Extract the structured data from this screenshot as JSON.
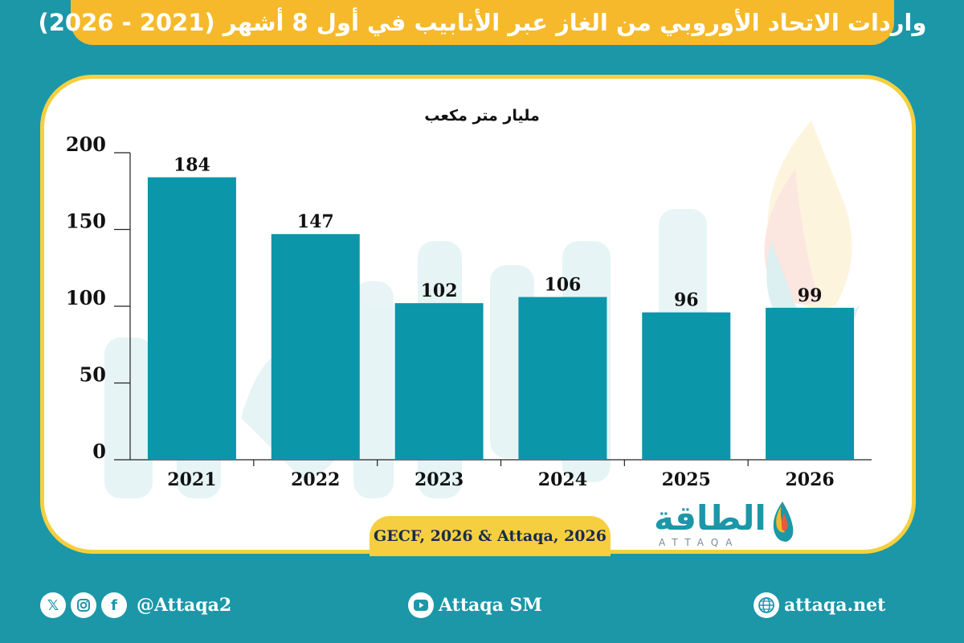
{
  "header": {
    "title": "واردات الاتحاد الأوروبي من الغاز عبر الأنابيب في أول 8 أشهر (2021 - 2026)"
  },
  "chart_data": {
    "type": "bar",
    "ylabel": "مليار متر مكعب",
    "categories": [
      "2021",
      "2022",
      "2023",
      "2024",
      "2025",
      "2026"
    ],
    "values": [
      184,
      147,
      102,
      106,
      96,
      99
    ],
    "ylim": [
      0,
      200
    ],
    "yticks": [
      0,
      50,
      100,
      150,
      200
    ],
    "bar_color": "#0b96aa",
    "grid": false,
    "legend": "none"
  },
  "source": {
    "text": "GECF, 2026 & Attaqa, 2026"
  },
  "logo": {
    "arabic": "الطاقة",
    "latin": "ATTAQA"
  },
  "footer": {
    "social_handle": "@Attaqa2",
    "youtube": "Attaqa SM",
    "website": "attaqa.net",
    "social_icons": [
      "x-icon",
      "instagram-icon",
      "facebook-icon"
    ]
  },
  "colors": {
    "background": "#1b97a8",
    "accent": "#f5b92b",
    "card_border": "#f5cf3f"
  }
}
